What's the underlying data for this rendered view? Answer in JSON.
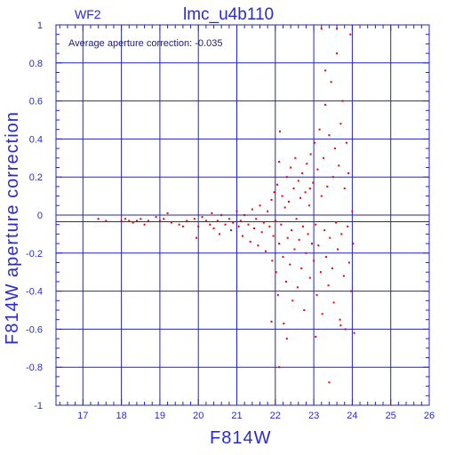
{
  "chart_data": {
    "type": "scatter",
    "panel_label": "WF2",
    "title": "lmc_u4b110",
    "annotation": "Average aperture correction: -0.035",
    "xlabel": "F814W",
    "ylabel": "F814W aperture correction",
    "xlim": [
      16.3,
      26
    ],
    "ylim": [
      -1,
      1
    ],
    "xticks": [
      17,
      18,
      19,
      20,
      21,
      22,
      23,
      24,
      25,
      26
    ],
    "xtick_labels": [
      "17",
      "18",
      "19",
      "20",
      "21",
      "22",
      "23",
      "24",
      "25",
      "26"
    ],
    "yticks": [
      -1,
      -0.8,
      -0.6,
      -0.4,
      -0.2,
      0,
      0.2,
      0.4,
      0.6,
      0.8,
      1
    ],
    "ytick_labels": [
      "-1",
      "-0.8",
      "-0.6",
      "-0.4",
      "-0.2",
      "0",
      "0.2",
      "0.4",
      "0.6",
      "0.8",
      "1"
    ],
    "reference_lines_y": [
      0,
      -0.035
    ],
    "grid": true,
    "colors": {
      "axes": "#2222cc",
      "points": "#ee0000",
      "text": "#2a2ad0"
    },
    "series": [
      {
        "values": [
          [
            17.4,
            -0.02
          ],
          [
            17.6,
            -0.03
          ],
          [
            18.0,
            -0.03
          ],
          [
            18.1,
            -0.02
          ],
          [
            18.2,
            -0.03
          ],
          [
            18.3,
            -0.04
          ],
          [
            18.4,
            -0.03
          ],
          [
            18.5,
            -0.02
          ],
          [
            18.6,
            -0.05
          ],
          [
            18.7,
            -0.03
          ],
          [
            18.9,
            -0.01
          ],
          [
            19.0,
            -0.03
          ],
          [
            19.1,
            -0.02
          ],
          [
            19.2,
            0.01
          ],
          [
            19.3,
            -0.04
          ],
          [
            19.5,
            -0.05
          ],
          [
            19.6,
            -0.06
          ],
          [
            19.7,
            -0.03
          ],
          [
            19.9,
            -0.02
          ],
          [
            19.95,
            -0.12
          ],
          [
            20.0,
            -0.06
          ],
          [
            20.1,
            -0.01
          ],
          [
            20.2,
            -0.03
          ],
          [
            20.3,
            -0.05
          ],
          [
            20.35,
            0.01
          ],
          [
            20.4,
            -0.07
          ],
          [
            20.5,
            -0.03
          ],
          [
            20.55,
            -0.1
          ],
          [
            20.6,
            0.0
          ],
          [
            20.7,
            -0.05
          ],
          [
            20.8,
            -0.02
          ],
          [
            20.85,
            -0.08
          ],
          [
            20.9,
            -0.04
          ],
          [
            21.0,
            0.02
          ],
          [
            21.05,
            -0.06
          ],
          [
            21.1,
            -0.03
          ],
          [
            21.15,
            -0.11
          ],
          [
            21.2,
            0.0
          ],
          [
            21.3,
            -0.05
          ],
          [
            21.35,
            -0.14
          ],
          [
            21.4,
            0.03
          ],
          [
            21.45,
            -0.07
          ],
          [
            21.5,
            -0.02
          ],
          [
            21.55,
            -0.16
          ],
          [
            21.6,
            0.05
          ],
          [
            21.65,
            -0.09
          ],
          [
            21.7,
            -0.04
          ],
          [
            21.75,
            -0.19
          ],
          [
            21.8,
            0.02
          ],
          [
            21.85,
            -0.06
          ],
          [
            21.9,
            0.08
          ],
          [
            21.92,
            -0.24
          ],
          [
            21.95,
            -0.11
          ],
          [
            21.97,
            0.12
          ],
          [
            22.0,
            -0.03
          ],
          [
            22.02,
            -0.3
          ],
          [
            22.05,
            0.16
          ],
          [
            22.07,
            -0.42
          ],
          [
            22.1,
            -0.15
          ],
          [
            22.12,
            0.44
          ],
          [
            22.15,
            -0.05
          ],
          [
            22.18,
            0.1
          ],
          [
            22.2,
            -0.22
          ],
          [
            22.22,
            -0.57
          ],
          [
            22.25,
            0.04
          ],
          [
            22.28,
            -0.35
          ],
          [
            22.3,
            0.2
          ],
          [
            22.32,
            -0.12
          ],
          [
            22.35,
            0.07
          ],
          [
            22.38,
            -0.26
          ],
          [
            22.4,
            0.25
          ],
          [
            22.42,
            -0.08
          ],
          [
            22.45,
            -0.45
          ],
          [
            22.48,
            0.14
          ],
          [
            22.5,
            -0.18
          ],
          [
            22.52,
            0.3
          ],
          [
            22.55,
            -0.02
          ],
          [
            22.58,
            -0.38
          ],
          [
            22.6,
            0.18
          ],
          [
            22.62,
            -0.13
          ],
          [
            22.65,
            0.09
          ],
          [
            22.68,
            -0.28
          ],
          [
            22.7,
            0.22
          ],
          [
            22.72,
            -0.06
          ],
          [
            22.75,
            -0.5
          ],
          [
            22.78,
            0.12
          ],
          [
            22.8,
            -0.2
          ],
          [
            22.82,
            0.27
          ],
          [
            22.85,
            -0.1
          ],
          [
            22.88,
            0.05
          ],
          [
            22.9,
            -0.33
          ],
          [
            22.92,
            0.32
          ],
          [
            22.95,
            -0.15
          ],
          [
            22.98,
            0.17
          ],
          [
            23.0,
            -0.24
          ],
          [
            23.02,
            0.38
          ],
          [
            23.05,
            -0.05
          ],
          [
            23.08,
            -0.42
          ],
          [
            23.1,
            0.24
          ],
          [
            23.12,
            -0.16
          ],
          [
            23.15,
            0.45
          ],
          [
            23.18,
            -0.3
          ],
          [
            23.2,
            0.1
          ],
          [
            23.22,
            -0.52
          ],
          [
            23.25,
            0.3
          ],
          [
            23.28,
            -0.08
          ],
          [
            23.3,
            0.58
          ],
          [
            23.32,
            -0.22
          ],
          [
            23.35,
            0.15
          ],
          [
            23.38,
            -0.37
          ],
          [
            23.4,
            0.42
          ],
          [
            23.42,
            -0.12
          ],
          [
            23.45,
            0.7
          ],
          [
            23.48,
            -0.28
          ],
          [
            23.5,
            0.2
          ],
          [
            23.52,
            -0.46
          ],
          [
            23.55,
            0.35
          ],
          [
            23.58,
            -0.04
          ],
          [
            23.6,
            0.85
          ],
          [
            23.62,
            -0.18
          ],
          [
            23.65,
            0.26
          ],
          [
            23.68,
            -0.55
          ],
          [
            23.7,
            0.48
          ],
          [
            23.72,
            -0.1
          ],
          [
            23.75,
            0.6
          ],
          [
            23.78,
            -0.32
          ],
          [
            23.8,
            0.14
          ],
          [
            23.82,
            -0.6
          ],
          [
            23.85,
            0.38
          ],
          [
            23.88,
            -0.06
          ],
          [
            23.9,
            0.22
          ],
          [
            23.92,
            -0.25
          ],
          [
            23.95,
            0.95
          ],
          [
            23.97,
            -0.4
          ],
          [
            24.0,
            0.02
          ],
          [
            24.02,
            -0.15
          ],
          [
            24.05,
            -0.62
          ],
          [
            22.3,
            -0.65
          ],
          [
            22.1,
            -0.8
          ],
          [
            23.4,
            -0.88
          ],
          [
            23.2,
            0.98
          ],
          [
            23.6,
            0.98
          ],
          [
            23.3,
            0.76
          ],
          [
            22.1,
            0.28
          ],
          [
            22.9,
            0.14
          ],
          [
            21.9,
            -0.56
          ],
          [
            23.05,
            -0.64
          ],
          [
            23.7,
            -0.58
          ]
        ]
      }
    ]
  }
}
